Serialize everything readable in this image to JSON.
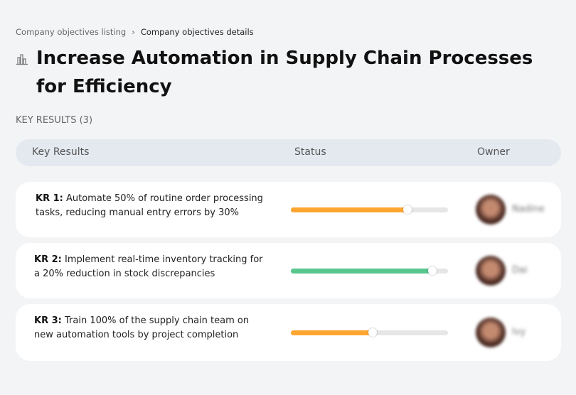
{
  "breadcrumb": {
    "items": [
      "Company objectives listing",
      "Company objectives details"
    ],
    "separator": "›"
  },
  "title": {
    "icon": "building-chart-icon",
    "text": "Increase Automation in Supply Chain Processes for Efficiency"
  },
  "key_results_heading": "KEY RESULTS (3)",
  "table": {
    "headers": [
      "Key Results",
      "Status",
      "Owner"
    ],
    "rows": [
      {
        "label": "KR 1:",
        "text": "Automate 50% of routine order processing tasks, reducing manual entry errors by 30%",
        "progress": 74,
        "color": "#ffa630",
        "owner": "Nadine"
      },
      {
        "label": "KR 2:",
        "text": "Implement real-time inventory tracking for a 20% reduction in stock discrepancies",
        "progress": 90,
        "color": "#57c78e",
        "owner": "Dai"
      },
      {
        "label": "KR 3:",
        "text": "Train 100% of the supply chain team on new automation tools by project completion",
        "progress": 52,
        "color": "#ffa630",
        "owner": "Ivy"
      }
    ]
  }
}
